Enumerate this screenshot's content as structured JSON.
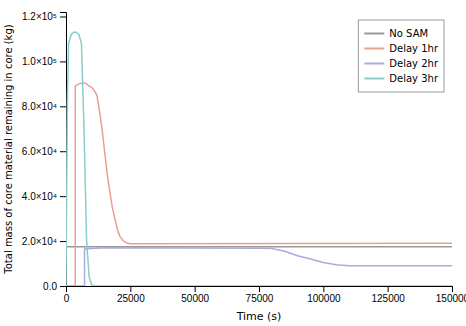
{
  "chart_data": {
    "type": "line",
    "xlabel": "Time (s)",
    "ylabel": "Total mass of core material remaining in core (kg)",
    "xlim": [
      0,
      150000
    ],
    "ylim": [
      0,
      122000
    ],
    "xticks": [
      0,
      25000,
      50000,
      75000,
      100000,
      125000,
      150000
    ],
    "yticks": [
      {
        "value": 0,
        "label": "0.0"
      },
      {
        "value": 20000,
        "label": "2.0×10⁴"
      },
      {
        "value": 40000,
        "label": "4.0×10⁴"
      },
      {
        "value": 60000,
        "label": "6.0×10⁴"
      },
      {
        "value": 80000,
        "label": "8.0×10⁴"
      },
      {
        "value": 100000,
        "label": "1.0×10⁵"
      },
      {
        "value": 120000,
        "label": "1.2×10⁵"
      }
    ],
    "grid": false,
    "legend": "upper right",
    "series": [
      {
        "name": "No SAM",
        "color": "#999999",
        "x": [
          0,
          150000
        ],
        "values": [
          17500,
          17500
        ]
      },
      {
        "name": "Delay 1hr",
        "color": "#e8a090",
        "x": [
          0,
          3600,
          3601,
          5000,
          7000,
          8000,
          9000,
          10000,
          11000,
          12000,
          13000,
          14000,
          15000,
          16000,
          17000,
          18000,
          19000,
          20000,
          21000,
          22000,
          23000,
          24000,
          25000,
          150000
        ],
        "values": [
          0,
          0,
          89000,
          90000,
          90500,
          90000,
          89000,
          88500,
          87000,
          85000,
          78000,
          70000,
          60000,
          50000,
          42000,
          35000,
          30000,
          25000,
          22000,
          20500,
          19500,
          19000,
          18800,
          19000
        ]
      },
      {
        "name": "Delay 2hr",
        "color": "#aaaadd",
        "x": [
          0,
          7200,
          7201,
          10000,
          15000,
          75000,
          80000,
          85000,
          90000,
          95000,
          100000,
          105000,
          110000,
          150000
        ],
        "values": [
          0,
          0,
          16500,
          16700,
          17000,
          16800,
          16700,
          15500,
          13500,
          12000,
          10500,
          9500,
          9000,
          9000
        ]
      },
      {
        "name": "Delay 3hr",
        "color": "#88cccc",
        "x": [
          0,
          500,
          1000,
          2000,
          3000,
          4000,
          5000,
          6000,
          7000,
          8000,
          9000,
          10000,
          10800,
          11000,
          150000
        ],
        "values": [
          0,
          80000,
          108000,
          112000,
          113000,
          113000,
          112000,
          108000,
          70000,
          20000,
          4000,
          500,
          0,
          0,
          0
        ]
      }
    ]
  }
}
